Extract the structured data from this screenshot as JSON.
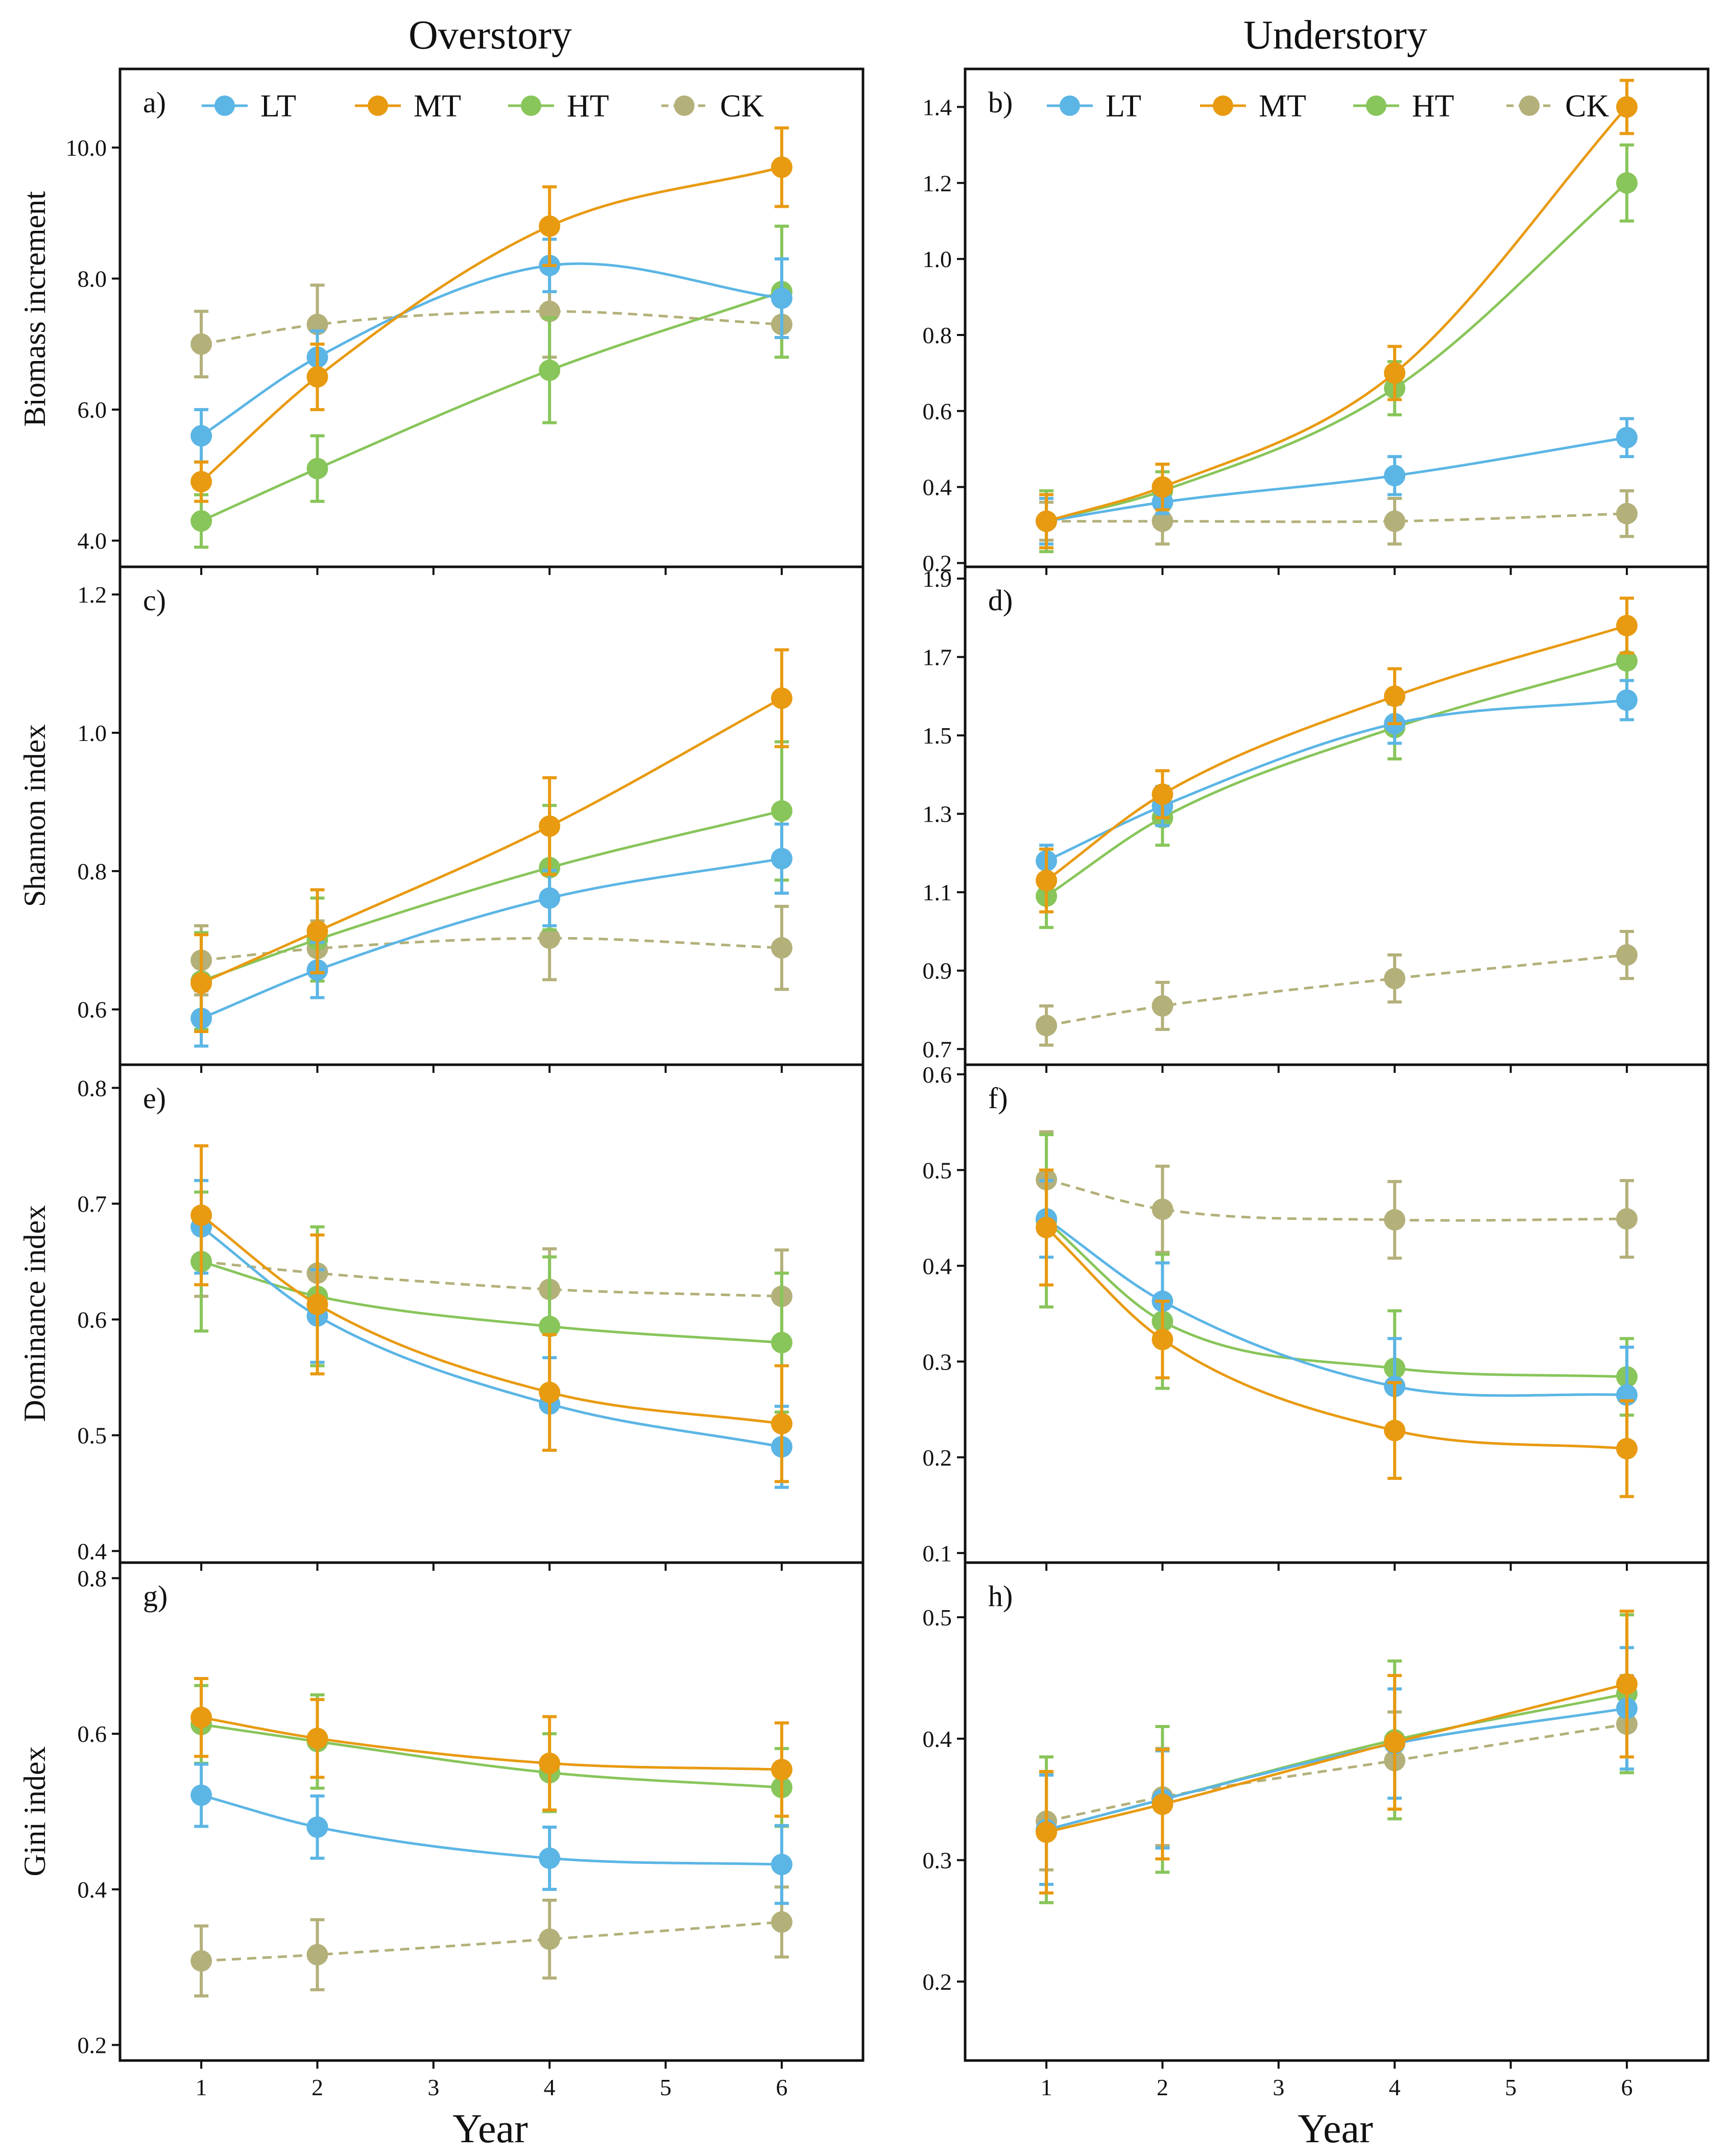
{
  "figure": {
    "col_titles": [
      "Overstory",
      "Understory"
    ],
    "xlabel": "Year"
  },
  "legend": [
    {
      "name": "LT",
      "color": "#5BB5E5",
      "dash": false
    },
    {
      "name": "MT",
      "color": "#E89A10",
      "dash": false
    },
    {
      "name": "HT",
      "color": "#88C55A",
      "dash": false
    },
    {
      "name": "CK",
      "color": "#B3B07A",
      "dash": true
    }
  ],
  "chart_data": [
    {
      "id": "a",
      "type": "line",
      "panel_label": "a)",
      "ylabel": "Biomass increment",
      "ylim": [
        3.6,
        11.2
      ],
      "yticks": [
        4.0,
        6.0,
        8.0,
        10.0
      ],
      "tick_decimals": 1,
      "x": [
        1,
        2,
        4,
        6
      ],
      "xlim": [
        0.3,
        6.7
      ],
      "xticks": [
        1,
        2,
        3,
        4,
        5,
        6
      ],
      "show_xticklabels": false,
      "legend": true,
      "series": [
        {
          "name": "LT",
          "values": [
            5.6,
            6.8,
            8.2,
            7.7
          ],
          "errors": [
            0.4,
            0.4,
            0.4,
            0.6
          ]
        },
        {
          "name": "MT",
          "values": [
            4.9,
            6.5,
            8.8,
            9.7
          ],
          "errors": [
            0.3,
            0.5,
            0.6,
            0.6
          ]
        },
        {
          "name": "HT",
          "values": [
            4.3,
            5.1,
            6.6,
            7.8
          ],
          "errors": [
            0.4,
            0.5,
            0.8,
            1.0
          ]
        },
        {
          "name": "CK",
          "values": [
            7.0,
            7.3,
            7.5,
            7.3
          ],
          "errors": [
            0.5,
            0.6,
            0.7,
            0.5
          ]
        }
      ]
    },
    {
      "id": "b",
      "type": "line",
      "panel_label": "b)",
      "ylabel": "",
      "ylim": [
        0.19,
        1.5
      ],
      "yticks": [
        0.2,
        0.4,
        0.6,
        0.8,
        1.0,
        1.2,
        1.4
      ],
      "tick_decimals": 1,
      "x": [
        1,
        2,
        4,
        6
      ],
      "xlim": [
        0.3,
        6.7
      ],
      "xticks": [
        1,
        2,
        3,
        4,
        5,
        6
      ],
      "show_xticklabels": false,
      "legend": true,
      "series": [
        {
          "name": "LT",
          "values": [
            0.31,
            0.36,
            0.43,
            0.53
          ],
          "errors": [
            0.06,
            0.03,
            0.05,
            0.05
          ]
        },
        {
          "name": "MT",
          "values": [
            0.31,
            0.4,
            0.7,
            1.4
          ],
          "errors": [
            0.07,
            0.06,
            0.07,
            0.07
          ]
        },
        {
          "name": "HT",
          "values": [
            0.31,
            0.39,
            0.66,
            1.2
          ],
          "errors": [
            0.08,
            0.05,
            0.07,
            0.1
          ]
        },
        {
          "name": "CK",
          "values": [
            0.31,
            0.31,
            0.31,
            0.33
          ],
          "errors": [
            0.05,
            0.06,
            0.06,
            0.06
          ]
        }
      ]
    },
    {
      "id": "c",
      "type": "line",
      "panel_label": "c)",
      "ylabel": "Shannon index",
      "ylim": [
        0.52,
        1.24
      ],
      "yticks": [
        0.6,
        0.8,
        1.0,
        1.2
      ],
      "tick_decimals": 1,
      "x": [
        1,
        2,
        4,
        6
      ],
      "xlim": [
        0.3,
        6.7
      ],
      "xticks": [
        1,
        2,
        3,
        4,
        5,
        6
      ],
      "show_xticklabels": false,
      "legend": false,
      "series": [
        {
          "name": "LT",
          "values": [
            0.587,
            0.657,
            0.761,
            0.818
          ],
          "errors": [
            0.04,
            0.04,
            0.04,
            0.05
          ]
        },
        {
          "name": "MT",
          "values": [
            0.638,
            0.713,
            0.865,
            1.05
          ],
          "errors": [
            0.07,
            0.06,
            0.07,
            0.07
          ]
        },
        {
          "name": "HT",
          "values": [
            0.641,
            0.701,
            0.805,
            0.887
          ],
          "errors": [
            0.07,
            0.06,
            0.09,
            0.1
          ]
        },
        {
          "name": "CK",
          "values": [
            0.671,
            0.688,
            0.703,
            0.689
          ],
          "errors": [
            0.05,
            0.04,
            0.06,
            0.06
          ]
        }
      ]
    },
    {
      "id": "d",
      "type": "line",
      "panel_label": "d)",
      "ylabel": "",
      "ylim": [
        0.66,
        1.93
      ],
      "yticks": [
        0.7,
        0.9,
        1.1,
        1.3,
        1.5,
        1.7,
        1.9
      ],
      "tick_decimals": 1,
      "x": [
        1,
        2,
        4,
        6
      ],
      "xlim": [
        0.3,
        6.7
      ],
      "xticks": [
        1,
        2,
        3,
        4,
        5,
        6
      ],
      "show_xticklabels": false,
      "legend": false,
      "series": [
        {
          "name": "LT",
          "values": [
            1.18,
            1.32,
            1.53,
            1.59
          ],
          "errors": [
            0.04,
            0.05,
            0.05,
            0.05
          ]
        },
        {
          "name": "MT",
          "values": [
            1.13,
            1.35,
            1.6,
            1.78
          ],
          "errors": [
            0.08,
            0.06,
            0.07,
            0.07
          ]
        },
        {
          "name": "HT",
          "values": [
            1.09,
            1.29,
            1.52,
            1.69
          ],
          "errors": [
            0.08,
            0.07,
            0.08,
            0.09
          ]
        },
        {
          "name": "CK",
          "values": [
            0.76,
            0.81,
            0.88,
            0.94
          ],
          "errors": [
            0.05,
            0.06,
            0.06,
            0.06
          ]
        }
      ]
    },
    {
      "id": "e",
      "type": "line",
      "panel_label": "e)",
      "ylabel": "Dominance index",
      "ylim": [
        0.39,
        0.82
      ],
      "yticks": [
        0.4,
        0.5,
        0.6,
        0.7,
        0.8
      ],
      "tick_decimals": 1,
      "x": [
        1,
        2,
        4,
        6
      ],
      "xlim": [
        0.3,
        6.7
      ],
      "xticks": [
        1,
        2,
        3,
        4,
        5,
        6
      ],
      "show_xticklabels": false,
      "legend": false,
      "series": [
        {
          "name": "LT",
          "values": [
            0.68,
            0.603,
            0.527,
            0.49
          ],
          "errors": [
            0.04,
            0.04,
            0.04,
            0.035
          ]
        },
        {
          "name": "MT",
          "values": [
            0.69,
            0.613,
            0.537,
            0.51
          ],
          "errors": [
            0.06,
            0.06,
            0.05,
            0.05
          ]
        },
        {
          "name": "HT",
          "values": [
            0.65,
            0.62,
            0.594,
            0.58
          ],
          "errors": [
            0.06,
            0.06,
            0.06,
            0.06
          ]
        },
        {
          "name": "CK",
          "values": [
            0.65,
            0.64,
            0.626,
            0.62
          ],
          "errors": [
            0.03,
            0.04,
            0.035,
            0.04
          ]
        }
      ]
    },
    {
      "id": "f",
      "type": "line",
      "panel_label": "f)",
      "ylabel": "",
      "ylim": [
        0.09,
        0.61
      ],
      "yticks": [
        0.1,
        0.2,
        0.3,
        0.4,
        0.5,
        0.6
      ],
      "tick_decimals": 1,
      "x": [
        1,
        2,
        4,
        6
      ],
      "xlim": [
        0.3,
        6.7
      ],
      "xticks": [
        1,
        2,
        3,
        4,
        5,
        6
      ],
      "show_xticklabels": false,
      "legend": false,
      "series": [
        {
          "name": "LT",
          "values": [
            0.449,
            0.363,
            0.274,
            0.265
          ],
          "errors": [
            0.04,
            0.04,
            0.05,
            0.05
          ]
        },
        {
          "name": "MT",
          "values": [
            0.44,
            0.323,
            0.228,
            0.209
          ],
          "errors": [
            0.06,
            0.04,
            0.05,
            0.05
          ]
        },
        {
          "name": "HT",
          "values": [
            0.447,
            0.342,
            0.293,
            0.284
          ],
          "errors": [
            0.09,
            0.07,
            0.06,
            0.04
          ]
        },
        {
          "name": "CK",
          "values": [
            0.49,
            0.459,
            0.448,
            0.449
          ],
          "errors": [
            0.05,
            0.045,
            0.04,
            0.04
          ]
        }
      ]
    },
    {
      "id": "g",
      "type": "line",
      "panel_label": "g)",
      "ylabel": "Gini index",
      "ylim": [
        0.18,
        0.82
      ],
      "yticks": [
        0.2,
        0.4,
        0.6,
        0.8
      ],
      "tick_decimals": 1,
      "x": [
        1,
        2,
        4,
        6
      ],
      "xlim": [
        0.3,
        6.7
      ],
      "xticks": [
        1,
        2,
        3,
        4,
        5,
        6
      ],
      "show_xticklabels": true,
      "legend": false,
      "series": [
        {
          "name": "LT",
          "values": [
            0.521,
            0.48,
            0.44,
            0.432
          ],
          "errors": [
            0.04,
            0.04,
            0.04,
            0.05
          ]
        },
        {
          "name": "MT",
          "values": [
            0.621,
            0.594,
            0.562,
            0.554
          ],
          "errors": [
            0.05,
            0.05,
            0.06,
            0.06
          ]
        },
        {
          "name": "HT",
          "values": [
            0.612,
            0.59,
            0.55,
            0.531
          ],
          "errors": [
            0.05,
            0.06,
            0.05,
            0.05
          ]
        },
        {
          "name": "CK",
          "values": [
            0.308,
            0.316,
            0.336,
            0.358
          ],
          "errors": [
            0.045,
            0.045,
            0.05,
            0.045
          ]
        }
      ]
    },
    {
      "id": "h",
      "type": "line",
      "panel_label": "h)",
      "ylabel": "",
      "ylim": [
        0.135,
        0.545
      ],
      "yticks": [
        0.2,
        0.3,
        0.4,
        0.5
      ],
      "tick_decimals": 1,
      "x": [
        1,
        2,
        4,
        6
      ],
      "xlim": [
        0.3,
        6.7
      ],
      "xticks": [
        1,
        2,
        3,
        4,
        5,
        6
      ],
      "show_xticklabels": true,
      "legend": false,
      "series": [
        {
          "name": "LT",
          "values": [
            0.325,
            0.35,
            0.396,
            0.425
          ],
          "errors": [
            0.045,
            0.04,
            0.045,
            0.05
          ]
        },
        {
          "name": "MT",
          "values": [
            0.323,
            0.346,
            0.397,
            0.445
          ],
          "errors": [
            0.05,
            0.045,
            0.055,
            0.06
          ]
        },
        {
          "name": "HT",
          "values": [
            0.325,
            0.35,
            0.399,
            0.437
          ],
          "errors": [
            0.06,
            0.06,
            0.065,
            0.065
          ]
        },
        {
          "name": "CK",
          "values": [
            0.332,
            0.352,
            0.382,
            0.412
          ],
          "errors": [
            0.04,
            0.04,
            0.04,
            0.04
          ]
        }
      ]
    }
  ]
}
